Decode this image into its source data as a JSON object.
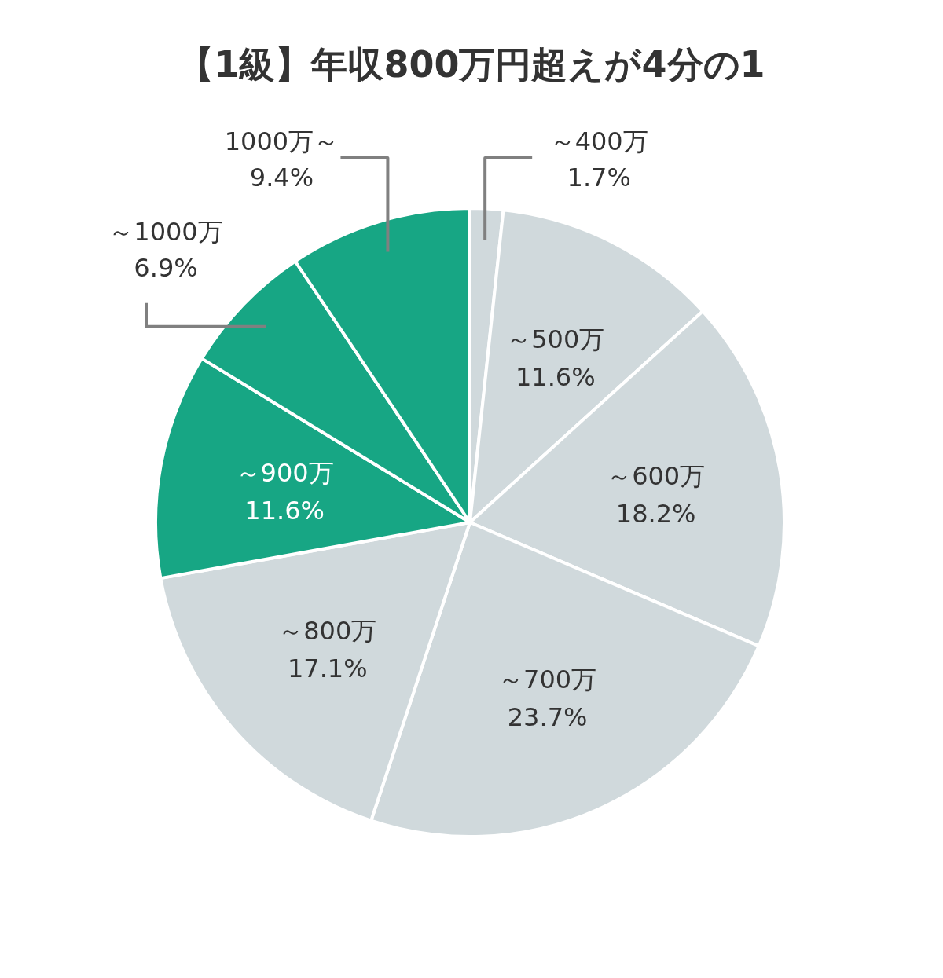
{
  "chart_data": {
    "type": "pie",
    "title": "【1級】年収800万円超えが4分の1",
    "categories": [
      "～400万",
      "～500万",
      "～600万",
      "～700万",
      "～800万",
      "～900万",
      "～1000万",
      "1000万～"
    ],
    "values": [
      1.7,
      11.6,
      18.2,
      23.7,
      17.1,
      11.6,
      6.9,
      9.4
    ],
    "value_labels": [
      "1.7%",
      "11.6%",
      "18.2%",
      "23.7%",
      "17.1%",
      "11.6%",
      "6.9%",
      "9.4%"
    ],
    "colors": [
      "#d0d9dc",
      "#d0d9dc",
      "#d0d9dc",
      "#d0d9dc",
      "#d0d9dc",
      "#17a684",
      "#17a684",
      "#17a684"
    ]
  }
}
